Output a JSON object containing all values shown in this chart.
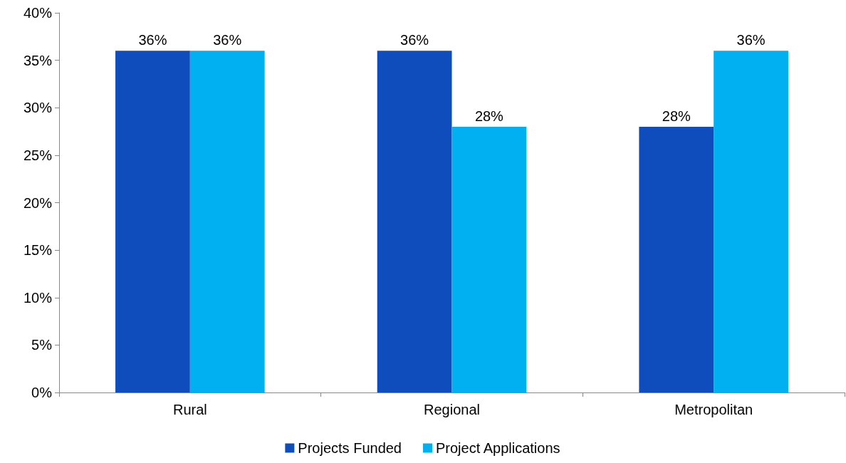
{
  "chart_data": {
    "type": "bar",
    "categories": [
      "Rural",
      "Regional",
      "Metropolitan"
    ],
    "series": [
      {
        "name": "Projects Funded",
        "color": "#0f4dbc",
        "values": [
          36,
          36,
          28
        ],
        "value_labels": [
          "36%",
          "36%",
          "28%"
        ]
      },
      {
        "name": "Project Applications",
        "color": "#00b0f0",
        "values": [
          36,
          28,
          36
        ],
        "value_labels": [
          "36%",
          "28%",
          "36%"
        ]
      }
    ],
    "ylim": [
      0,
      40
    ],
    "yticks": [
      {
        "value": 0,
        "label": "0%"
      },
      {
        "value": 5,
        "label": "5%"
      },
      {
        "value": 10,
        "label": "10%"
      },
      {
        "value": 15,
        "label": "15%"
      },
      {
        "value": 20,
        "label": "20%"
      },
      {
        "value": 25,
        "label": "25%"
      },
      {
        "value": 30,
        "label": "30%"
      },
      {
        "value": 35,
        "label": "35%"
      },
      {
        "value": 40,
        "label": "40%"
      }
    ],
    "grid": false,
    "legend": "bottom"
  }
}
